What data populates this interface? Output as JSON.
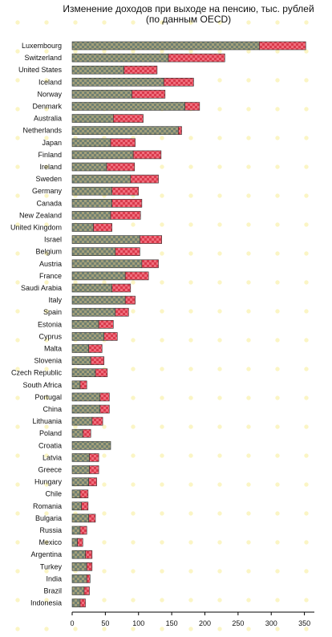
{
  "chart_data": {
    "type": "bar",
    "orientation": "horizontal",
    "stacked": true,
    "title": "Изменение доходов при выходе на пенсию, тыс. рублей",
    "subtitle": "(по данным OECD)",
    "categories": [
      "Luxembourg",
      "Switzerland",
      "United States",
      "Iceland",
      "Norway",
      "Denmark",
      "Australia",
      "Netherlands",
      "Japan",
      "Finland",
      "Ireland",
      "Sweden",
      "Germany",
      "Canada",
      "New Zealand",
      "United Kingdom",
      "Israel",
      "Belgium",
      "Austria",
      "France",
      "Saudi Arabia",
      "Italy",
      "Spain",
      "Estonia",
      "Cyprus",
      "Malta",
      "Slovenia",
      "Czech Republic",
      "South Africa",
      "Portugal",
      "China",
      "Lithuania",
      "Poland",
      "Croatia",
      "Latvia",
      "Greece",
      "Hungary",
      "Chile",
      "Romania",
      "Bulgaria",
      "Russia",
      "Mexico",
      "Argentina",
      "Turkey",
      "India",
      "Brazil",
      "Indonesia"
    ],
    "series": [
      {
        "color": "#6f7f72",
        "values": [
          282,
          145,
          78,
          138,
          90,
          170,
          62,
          160,
          58,
          92,
          52,
          88,
          60,
          60,
          58,
          32,
          102,
          65,
          105,
          80,
          60,
          80,
          65,
          40,
          48,
          25,
          28,
          35,
          12,
          42,
          42,
          30,
          16,
          58,
          26,
          26,
          25,
          12,
          14,
          25,
          12,
          8,
          20,
          22,
          22,
          18,
          12
        ]
      },
      {
        "color": "#d93a4c",
        "values": [
          70,
          85,
          50,
          45,
          50,
          22,
          45,
          5,
          37,
          42,
          42,
          42,
          40,
          45,
          45,
          28,
          33,
          37,
          25,
          35,
          28,
          15,
          20,
          22,
          20,
          20,
          20,
          18,
          10,
          14,
          14,
          16,
          12,
          0,
          14,
          14,
          12,
          12,
          10,
          10,
          10,
          8,
          10,
          8,
          5,
          8,
          8
        ]
      }
    ],
    "xlim": [
      0,
      365
    ],
    "xticks": [
      0,
      50,
      100,
      150,
      200,
      250,
      300,
      350
    ],
    "grid": false,
    "legend": "none"
  }
}
